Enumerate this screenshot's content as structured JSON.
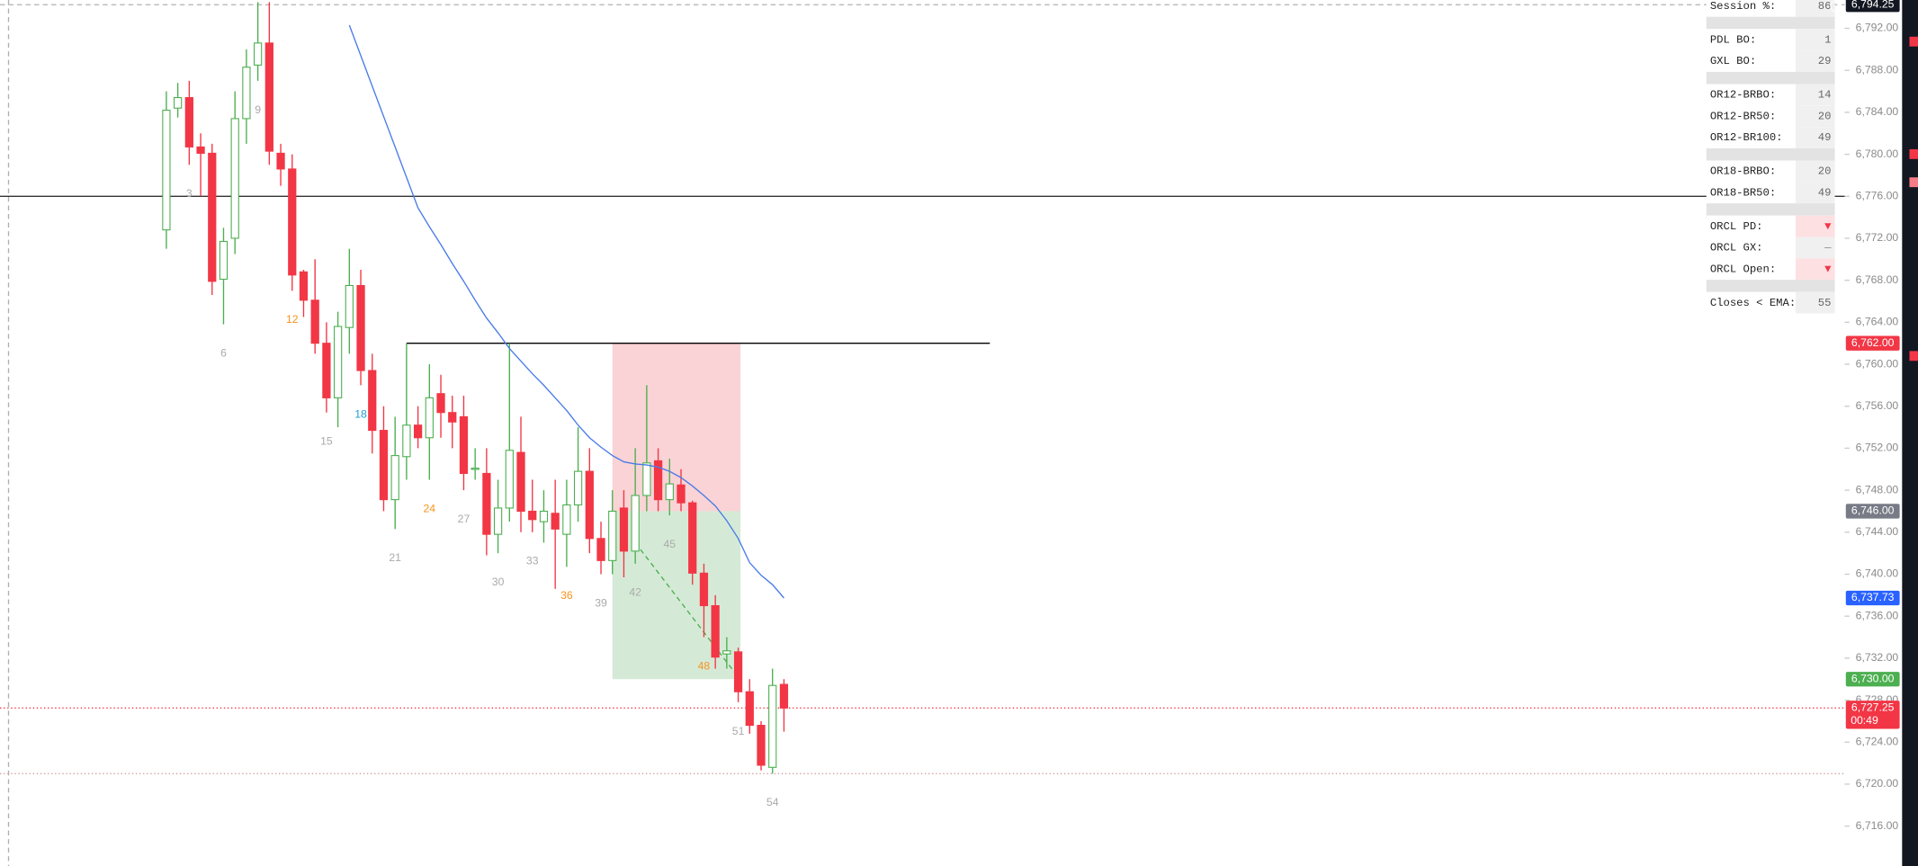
{
  "chart_data": {
    "type": "candlestick",
    "up_color": "#4caf50",
    "down_color": "#f23645",
    "ylim": [
      6712.2,
      6794.7
    ],
    "yticks": [
      {
        "value": 6716,
        "label": "6,716.00"
      },
      {
        "value": 6720,
        "label": "6,720.00"
      },
      {
        "value": 6724,
        "label": "6,724.00"
      },
      {
        "value": 6728,
        "label": "6,728.00"
      },
      {
        "value": 6732,
        "label": "6,732.00"
      },
      {
        "value": 6736,
        "label": "6,736.00"
      },
      {
        "value": 6740,
        "label": "6,740.00"
      },
      {
        "value": 6744,
        "label": "6,744.00"
      },
      {
        "value": 6748,
        "label": "6,748.00"
      },
      {
        "value": 6752,
        "label": "6,752.00"
      },
      {
        "value": 6756,
        "label": "6,756.00"
      },
      {
        "value": 6760,
        "label": "6,760.00"
      },
      {
        "value": 6764,
        "label": "6,764.00"
      },
      {
        "value": 6768,
        "label": "6,768.00"
      },
      {
        "value": 6772,
        "label": "6,772.00"
      },
      {
        "value": 6776,
        "label": "6,776.00"
      },
      {
        "value": 6780,
        "label": "6,780.00"
      },
      {
        "value": 6784,
        "label": "6,784.00"
      },
      {
        "value": 6788,
        "label": "6,788.00"
      },
      {
        "value": 6792,
        "label": "6,792.00"
      }
    ],
    "open": [
      6772.8,
      6784.4,
      6785.4,
      6780.7,
      6780.1,
      6768.1,
      6772,
      6783.4,
      6788.5,
      6790.6,
      6780.1,
      6778.6,
      6768.8,
      6766.1,
      6762,
      6756.8,
      6763.5,
      6767.5,
      6759.4,
      6753.7,
      6747.1,
      6751.2,
      6754.2,
      6753,
      6757.2,
      6755.4,
      6755,
      6750,
      6749.6,
      6743.8,
      6746.3,
      6751.6,
      6746,
      6745,
      6745.8,
      6743.8,
      6746.6,
      6749.8,
      6743.4,
      6741.3,
      6746.3,
      6742.2,
      6747.5,
      6750.8,
      6747.1,
      6748.5,
      6746.8,
      6740.1,
      6737,
      6732.4,
      6732.6,
      6728.8,
      6725.6,
      6721.6,
      6729.5
    ],
    "high": [
      6786,
      6786.8,
      6787,
      6782,
      6781,
      6773,
      6786,
      6790,
      6794.5,
      6794.5,
      6781,
      6780,
      6769,
      6770,
      6764,
      6765,
      6771,
      6769,
      6761,
      6756,
      6755,
      6762,
      6756,
      6760,
      6759,
      6757,
      6757,
      6752,
      6752,
      6749,
      6762,
      6755,
      6749,
      6748,
      6749,
      6749,
      6754,
      6752,
      6745,
      6748,
      6748,
      6752,
      6758,
      6752,
      6751,
      6750,
      6747,
      6741,
      6738,
      6734,
      6733,
      6730,
      6726,
      6731,
      6730
    ],
    "low": [
      6771,
      6783.5,
      6779,
      6776,
      6766.6,
      6763.8,
      6770.5,
      6781,
      6787,
      6779,
      6777,
      6767,
      6764.5,
      6761,
      6755.4,
      6754,
      6761,
      6758,
      6751.5,
      6746,
      6744.3,
      6749,
      6752,
      6749,
      6753,
      6752,
      6748,
      6749,
      6741.8,
      6742,
      6745,
      6744,
      6744,
      6743,
      6738.6,
      6740.7,
      6745,
      6742,
      6740,
      6740,
      6739.7,
      6741,
      6746,
      6746,
      6745.6,
      6746,
      6739,
      6734,
      6731,
      6731,
      6727.8,
      6724.8,
      6721.3,
      6721,
      6725
    ],
    "close": [
      6784.2,
      6785.4,
      6780.7,
      6780.1,
      6767.9,
      6771.7,
      6783.4,
      6788.3,
      6790.6,
      6780.3,
      6778.6,
      6768.5,
      6766.1,
      6762,
      6756.8,
      6763.6,
      6767.5,
      6759.4,
      6753.7,
      6747.1,
      6751.3,
      6754.2,
      6753,
      6756.8,
      6755.4,
      6754.5,
      6749.6,
      6750.1,
      6743.8,
      6746.3,
      6751.8,
      6746,
      6745.2,
      6746,
      6744.3,
      6746.6,
      6749.8,
      6743.4,
      6741.3,
      6746,
      6742.2,
      6747.5,
      6750.6,
      6747.1,
      6748.6,
      6746.8,
      6740.1,
      6737,
      6732.1,
      6732.7,
      6728.8,
      6725.6,
      6721.8,
      6729.4,
      6727.25
    ],
    "ema": {
      "color": "#4a7ce8",
      "values": [
        null,
        null,
        null,
        null,
        null,
        null,
        null,
        null,
        null,
        null,
        null,
        null,
        null,
        null,
        null,
        null,
        6792.3,
        6789.4,
        6786.5,
        6783.6,
        6780.7,
        6777.8,
        6774.9,
        6773.1,
        6771.4,
        6769.6,
        6767.9,
        6766.1,
        6764.4,
        6763,
        6761.5,
        6760.3,
        6759.1,
        6758,
        6756.8,
        6755.6,
        6754.2,
        6753,
        6752.1,
        6751.3,
        6750.7,
        6750.5,
        6750.4,
        6750.2,
        6749.8,
        6749.2,
        6748.4,
        6747.5,
        6746.5,
        6745.1,
        6743.4,
        6741.1,
        6739.9,
        6739,
        6737.73
      ]
    },
    "bar_counts": [
      {
        "bar": 3,
        "color": "#aaaaaa"
      },
      {
        "bar": 6,
        "color": "#aaaaaa"
      },
      {
        "bar": 9,
        "color": "#aaaaaa"
      },
      {
        "bar": 12,
        "color": "#f7931a"
      },
      {
        "bar": 15,
        "color": "#aaaaaa"
      },
      {
        "bar": 18,
        "color": "#1e9bd7"
      },
      {
        "bar": 21,
        "color": "#aaaaaa"
      },
      {
        "bar": 24,
        "color": "#f7931a"
      },
      {
        "bar": 27,
        "color": "#aaaaaa"
      },
      {
        "bar": 30,
        "color": "#aaaaaa"
      },
      {
        "bar": 33,
        "color": "#aaaaaa"
      },
      {
        "bar": 36,
        "color": "#f7931a"
      },
      {
        "bar": 39,
        "color": "#aaaaaa"
      },
      {
        "bar": 42,
        "color": "#aaaaaa"
      },
      {
        "bar": 45,
        "color": "#aaaaaa"
      },
      {
        "bar": 48,
        "color": "#f7931a"
      },
      {
        "bar": 51,
        "color": "#aaaaaa"
      },
      {
        "bar": 54,
        "color": "#aaaaaa"
      }
    ],
    "zones": [
      {
        "start_bar": 40,
        "end_bar": 51,
        "top": 6762,
        "bottom": 6746,
        "color": "#f9d3d5"
      },
      {
        "start_bar": 40,
        "end_bar": 51,
        "top": 6746,
        "bottom": 6730,
        "color": "#d5ead6"
      }
    ],
    "levels": [
      {
        "value": 6776,
        "color": "#333333",
        "dash": "none",
        "start_bar": null,
        "end_bar": null
      },
      {
        "value": 6762,
        "color": "#000000",
        "dash": "none",
        "start_bar": 22,
        "end_bar": 73
      },
      {
        "value": 6794.25,
        "color": "#b0b0b0",
        "dash": "4 3",
        "start_bar": null,
        "end_bar": null
      },
      {
        "value": 6727.25,
        "color": "#f23645",
        "dash": "1 2",
        "start_bar": null,
        "end_bar": null
      },
      {
        "value": 6721,
        "color": "#d0a0a0",
        "dash": "1 2",
        "start_bar": null,
        "end_bar": null
      }
    ],
    "trend_line": {
      "color": "#4caf50",
      "x": [
        42,
        51
      ],
      "y": [
        6743,
        6730.2
      ]
    },
    "price_labels": [
      {
        "value": 6794.25,
        "label": "6,794.25",
        "color": "#131722"
      },
      {
        "value": 6762,
        "label": "6,762.00",
        "color": "#f23645"
      },
      {
        "value": 6746,
        "label": "6,746.00",
        "color": "#787b86"
      },
      {
        "value": 6737.73,
        "label": "6,737.73",
        "color": "#2962ff"
      },
      {
        "value": 6730,
        "label": "6,730.00",
        "color": "#4caf50"
      },
      {
        "value": 6727.25,
        "label": "6,727.25",
        "color": "#f23645",
        "countdown": "00:49"
      }
    ]
  },
  "stats": {
    "groups": [
      [
        {
          "label": "Session %:",
          "value": 86
        }
      ],
      [
        {
          "label": "PDL BO:",
          "value": 1
        },
        {
          "label": "GXL BO:",
          "value": 29
        }
      ],
      [
        {
          "label": "OR12-BRBO:",
          "value": 14
        },
        {
          "label": "OR12-BR50:",
          "value": 20
        },
        {
          "label": "OR12-BR100:",
          "value": 49
        }
      ],
      [
        {
          "label": "OR18-BRBO:",
          "value": 20
        },
        {
          "label": "OR18-BR50:",
          "value": 49
        }
      ],
      [
        {
          "label": "ORCL PD:",
          "value": "▼",
          "value_color": "#f23645",
          "cell_color": "#fde0e2"
        },
        {
          "label": "ORCL GX:",
          "value": "—",
          "value_color": "#888888"
        },
        {
          "label": "ORCL Open:",
          "value": "▼",
          "value_color": "#f23645",
          "cell_color": "#fde0e2"
        }
      ],
      [
        {
          "label": "Closes < EMA:",
          "value": 55
        }
      ]
    ]
  }
}
